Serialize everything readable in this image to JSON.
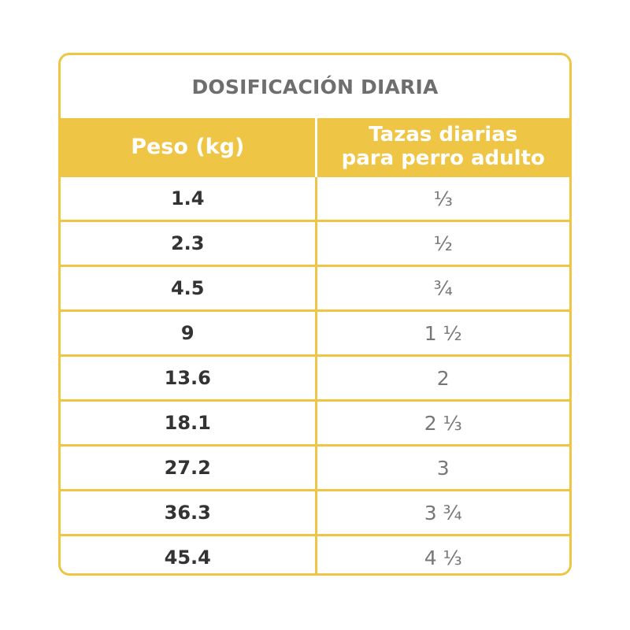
{
  "title": "DOSIFICACIÓN DIARIA",
  "headers": {
    "weight": "Peso (kg)",
    "cups_line1": "Tazas diarias",
    "cups_line2": "para perro adulto"
  },
  "rows": [
    {
      "weight": "1.4",
      "cups": "⅓"
    },
    {
      "weight": "2.3",
      "cups": "½"
    },
    {
      "weight": "4.5",
      "cups": "¾"
    },
    {
      "weight": "9",
      "cups": "1 ½"
    },
    {
      "weight": "13.6",
      "cups": "2"
    },
    {
      "weight": "18.1",
      "cups": "2 ⅓"
    },
    {
      "weight": "27.2",
      "cups": "3"
    },
    {
      "weight": "36.3",
      "cups": "3 ¾"
    },
    {
      "weight": "45.4",
      "cups": "4 ⅓"
    }
  ],
  "colors": {
    "accent": "#efc545",
    "title_text": "#6e6e6e",
    "weight_text": "#333333",
    "cups_text": "#777777"
  }
}
